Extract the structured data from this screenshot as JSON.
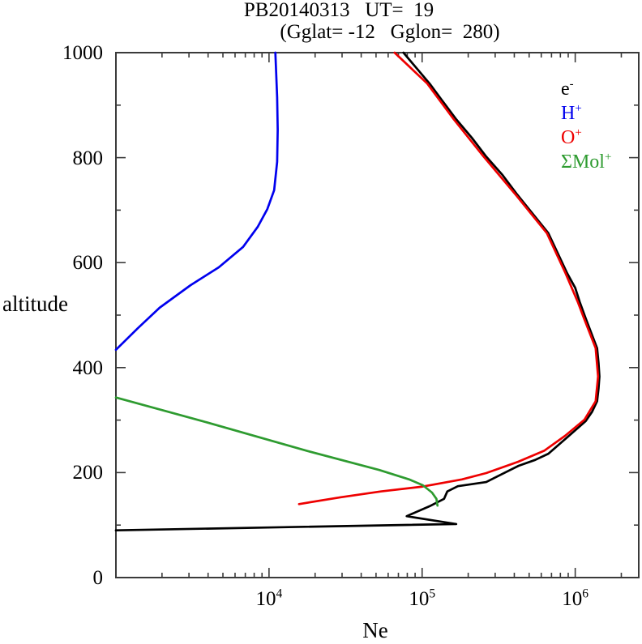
{
  "title": {
    "line1": "PB20140313   UT=  19",
    "line2": "(Gglat= -12   Gglon=  280)"
  },
  "axes": {
    "x": {
      "label": "Ne"
    },
    "y": {
      "label": "altitude"
    }
  },
  "frame_color": "#3a3a3a",
  "chart_data": {
    "type": "line",
    "title": "PB20140313   UT=  19",
    "subtitle": "(Gglat= -12   Gglon=  280)",
    "xlabel": "Ne",
    "ylabel": "altitude",
    "x_scale": "log",
    "xlim": [
      1000,
      2600000
    ],
    "ylim": [
      0,
      1000
    ],
    "grid": false,
    "legend_position": "inside-top-right",
    "x_major_ticks": [
      10000,
      100000,
      1000000
    ],
    "x_tick_labels": [
      {
        "base": "10",
        "exp": "4"
      },
      {
        "base": "10",
        "exp": "5"
      },
      {
        "base": "10",
        "exp": "6"
      }
    ],
    "x_minor_mantissas": [
      2,
      3,
      4,
      5,
      6,
      7,
      8,
      9
    ],
    "y_major_ticks": [
      0,
      200,
      400,
      600,
      800,
      1000
    ],
    "y_tick_labels": [
      "0",
      "200",
      "400",
      "600",
      "800",
      "1000"
    ],
    "y_minor_ticks": [
      100,
      300,
      500,
      700,
      900
    ],
    "series": [
      {
        "name": "e-",
        "legend": {
          "base": "e",
          "sup": "-"
        },
        "color": "#000000",
        "points_ne_alt": [
          [
            1000,
            90
          ],
          [
            12400,
            96
          ],
          [
            167000,
            102
          ],
          [
            79300,
            117
          ],
          [
            112000,
            136
          ],
          [
            139000,
            150
          ],
          [
            146000,
            164
          ],
          [
            171000,
            174
          ],
          [
            262000,
            182
          ],
          [
            337000,
            198
          ],
          [
            427000,
            213
          ],
          [
            547000,
            224
          ],
          [
            668000,
            236
          ],
          [
            885000,
            267
          ],
          [
            1170000,
            298
          ],
          [
            1290000,
            316
          ],
          [
            1390000,
            336
          ],
          [
            1420000,
            360
          ],
          [
            1440000,
            383
          ],
          [
            1420000,
            409
          ],
          [
            1390000,
            437
          ],
          [
            1170000,
            494
          ],
          [
            1070000,
            525
          ],
          [
            1000000,
            552
          ],
          [
            885000,
            580
          ],
          [
            668000,
            656
          ],
          [
            417000,
            730
          ],
          [
            335000,
            767
          ],
          [
            262000,
            802
          ],
          [
            211000,
            838
          ],
          [
            167000,
            873
          ],
          [
            135000,
            909
          ],
          [
            112000,
            941
          ],
          [
            75500,
            1000
          ]
        ]
      },
      {
        "name": "H+",
        "legend": {
          "base": "H",
          "sup": "+"
        },
        "color": "#0000ee",
        "points_ne_alt": [
          [
            1000,
            434
          ],
          [
            1390,
            475
          ],
          [
            1930,
            514
          ],
          [
            3070,
            557
          ],
          [
            4700,
            591
          ],
          [
            6770,
            630
          ],
          [
            8430,
            668
          ],
          [
            9750,
            702
          ],
          [
            10800,
            738
          ],
          [
            11300,
            792
          ],
          [
            11400,
            853
          ],
          [
            11300,
            915
          ],
          [
            11000,
            1000
          ]
        ]
      },
      {
        "name": "O+",
        "legend": {
          "base": "O",
          "sup": "+"
        },
        "color": "#ee0000",
        "points_ne_alt": [
          [
            15700,
            140
          ],
          [
            29200,
            153
          ],
          [
            53700,
            164
          ],
          [
            98800,
            173
          ],
          [
            182000,
            187
          ],
          [
            262000,
            199
          ],
          [
            427000,
            221
          ],
          [
            630000,
            242
          ],
          [
            858000,
            270
          ],
          [
            1150000,
            301
          ],
          [
            1360000,
            336
          ],
          [
            1410000,
            383
          ],
          [
            1360000,
            437
          ],
          [
            1140000,
            494
          ],
          [
            1040000,
            525
          ],
          [
            864000,
            580
          ],
          [
            653000,
            656
          ],
          [
            407000,
            730
          ],
          [
            252000,
            802
          ],
          [
            161000,
            873
          ],
          [
            108000,
            941
          ],
          [
            66100,
            1000
          ]
        ]
      },
      {
        "name": "Mol+",
        "legend": {
          "base": "ΣMol",
          "sup": "+"
        },
        "color": "#2e9b30",
        "points_ne_alt": [
          [
            1000,
            343
          ],
          [
            3680,
            298
          ],
          [
            17900,
            241
          ],
          [
            52500,
            205
          ],
          [
            82200,
            187
          ],
          [
            101000,
            176
          ],
          [
            116000,
            162
          ],
          [
            124000,
            150
          ],
          [
            126000,
            137
          ]
        ]
      }
    ]
  }
}
